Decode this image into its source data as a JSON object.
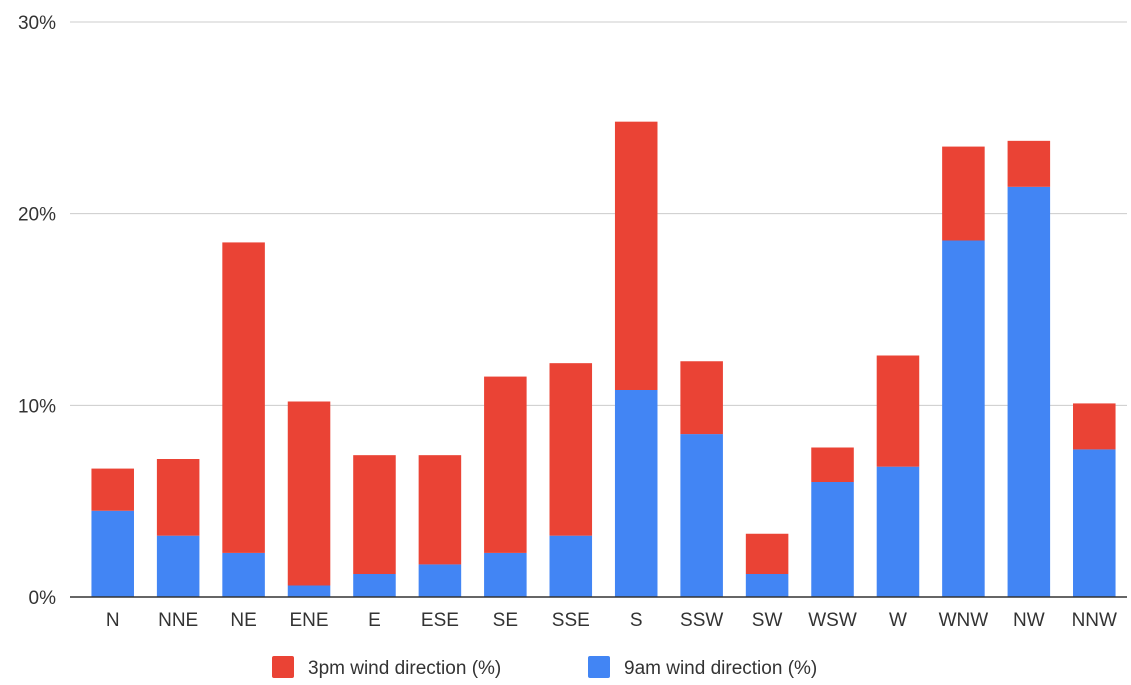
{
  "chart_data": {
    "type": "bar",
    "stacked": true,
    "categories": [
      "N",
      "NNE",
      "NE",
      "ENE",
      "E",
      "ESE",
      "SE",
      "SSE",
      "S",
      "SSW",
      "SW",
      "WSW",
      "W",
      "WNW",
      "NW",
      "NNW"
    ],
    "series": [
      {
        "name": "9am wind direction (%)",
        "color": "#4285f4",
        "values": [
          4.5,
          3.2,
          2.3,
          0.6,
          1.2,
          1.7,
          2.3,
          3.2,
          10.8,
          8.5,
          1.2,
          6.0,
          6.8,
          18.6,
          21.4,
          7.7
        ]
      },
      {
        "name": "3pm wind direction (%)",
        "color": "#ea4335",
        "values": [
          2.2,
          4.0,
          16.2,
          9.6,
          6.2,
          5.7,
          9.2,
          9.0,
          14.0,
          3.8,
          2.1,
          1.8,
          5.8,
          4.9,
          2.4,
          2.4
        ]
      }
    ],
    "y_ticks": [
      "0%",
      "10%",
      "20%",
      "30%"
    ],
    "y_tick_values": [
      0,
      10,
      20,
      30
    ],
    "ylim": [
      0,
      30
    ],
    "grid": true,
    "legend_position": "bottom",
    "legend_order": [
      "3pm wind direction (%)",
      "9am wind direction (%)"
    ]
  }
}
